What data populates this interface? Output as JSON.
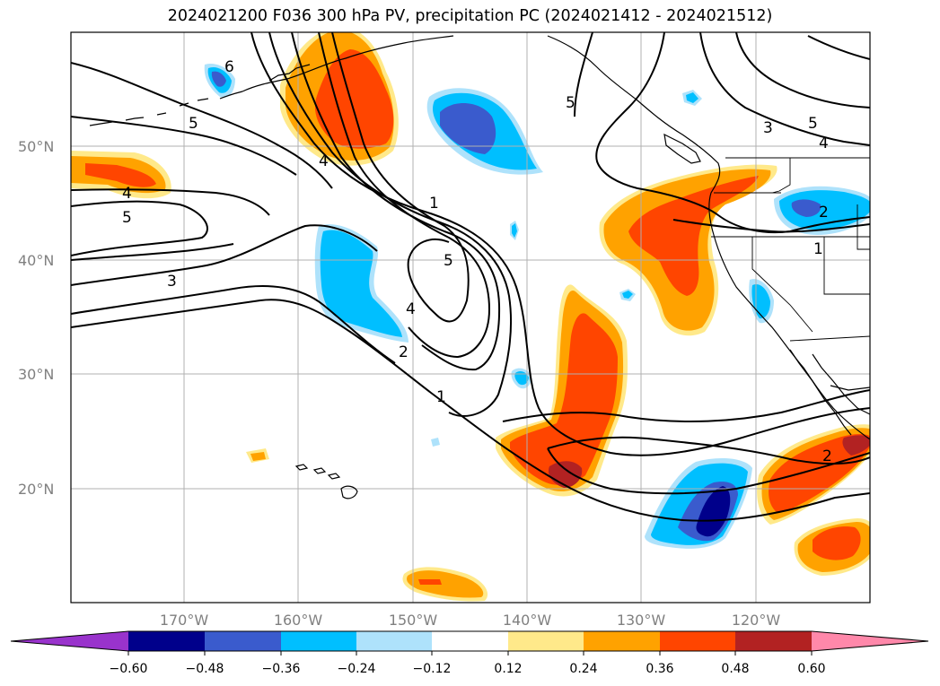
{
  "title": "2024021200 F036 300 hPa PV, precipitation PC (2024021412 - 2024021512)",
  "lat_labels": [
    "50°N",
    "40°N",
    "30°N",
    "20°N"
  ],
  "lon_labels": [
    "170°W",
    "160°W",
    "150°W",
    "140°W",
    "130°W",
    "120°W"
  ],
  "colorbar": {
    "ticks": [
      "−0.60",
      "−0.48",
      "−0.36",
      "−0.24",
      "−0.12",
      "0.12",
      "0.24",
      "0.36",
      "0.48",
      "0.60"
    ],
    "colors": {
      "lt_m060": "#9933cc",
      "m060_m048": "#00008b",
      "m048_m036": "#3a5bcd",
      "m036_m024": "#00bfff",
      "m024_m012": "#aee2fb",
      "m012_012": "#ffffff",
      "p012_p024": "#ffe98a",
      "p024_p036": "#ffa200",
      "p036_p048": "#ff4500",
      "p048_p060": "#b22222",
      "gt_p060": "#ff88aa"
    }
  },
  "contour_labels": [
    "6",
    "5",
    "4",
    "1",
    "5",
    "4",
    "5",
    "3",
    "5",
    "4",
    "2",
    "1",
    "3",
    "5",
    "4",
    "2",
    "1",
    "2"
  ]
}
